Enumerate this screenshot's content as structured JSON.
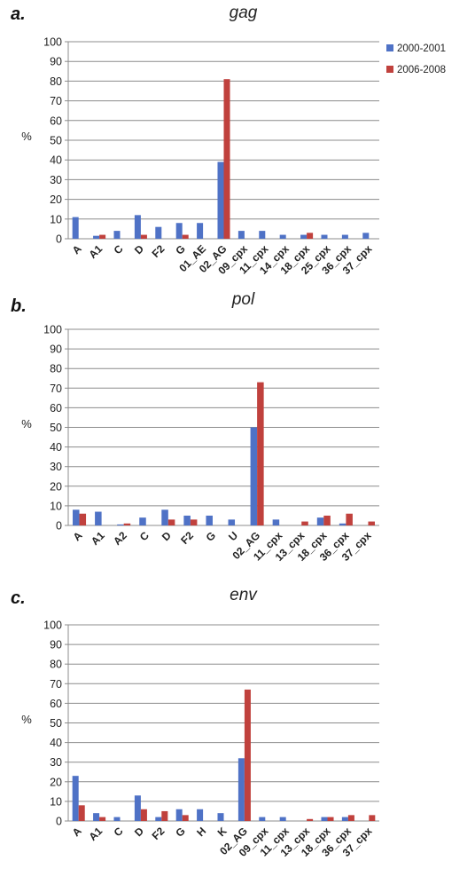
{
  "legend": {
    "entries": [
      {
        "label": "2000-2001",
        "color": "#4f72c6"
      },
      {
        "label": "2006-2008",
        "color": "#c0413d"
      }
    ]
  },
  "chart_data": [
    {
      "type": "bar",
      "panel_label": "a.",
      "title": "gag",
      "ylabel": "%",
      "ylim": [
        0,
        100
      ],
      "yticks": [
        0,
        10,
        20,
        30,
        40,
        50,
        60,
        70,
        80,
        90,
        100
      ],
      "grid": true,
      "legend_placement": "top-right",
      "categories": [
        "A",
        "A1",
        "C",
        "D",
        "F2",
        "G",
        "01_AE",
        "02_AG",
        "09_cpx",
        "11_cpx",
        "14_cpx",
        "18_cpx",
        "25_cpx",
        "36_cpx",
        "37_cpx"
      ],
      "series": [
        {
          "name": "2000-2001",
          "values": [
            11,
            1.5,
            4,
            12,
            6,
            8,
            8,
            39,
            4,
            4,
            2,
            2,
            2,
            2,
            3
          ]
        },
        {
          "name": "2006-2008",
          "values": [
            0,
            2,
            0,
            2,
            0,
            2,
            0,
            81,
            0,
            0,
            0,
            3,
            0,
            0,
            0
          ]
        }
      ]
    },
    {
      "type": "bar",
      "panel_label": "b.",
      "title": "pol",
      "ylabel": "%",
      "ylim": [
        0,
        100
      ],
      "yticks": [
        0,
        10,
        20,
        30,
        40,
        50,
        60,
        70,
        80,
        90,
        100
      ],
      "grid": true,
      "categories": [
        "A",
        "A1",
        "A2",
        "C",
        "D",
        "F2",
        "G",
        "U",
        "02_AG",
        "11_cpx",
        "13_cpx",
        "18_cpx",
        "36_cpx",
        "37_cpx"
      ],
      "series": [
        {
          "name": "2000-2001",
          "values": [
            8,
            7,
            0.5,
            4,
            8,
            5,
            5,
            3,
            50,
            3,
            0,
            4,
            1,
            0
          ]
        },
        {
          "name": "2006-2008",
          "values": [
            6,
            0,
            1,
            0,
            3,
            3,
            0,
            0,
            73,
            0,
            2,
            5,
            6,
            2
          ]
        }
      ]
    },
    {
      "type": "bar",
      "panel_label": "c.",
      "title": "env",
      "ylabel": "%",
      "ylim": [
        0,
        100
      ],
      "yticks": [
        0,
        10,
        20,
        30,
        40,
        50,
        60,
        70,
        80,
        90,
        100
      ],
      "grid": true,
      "categories": [
        "A",
        "A1",
        "C",
        "D",
        "F2",
        "G",
        "H",
        "K",
        "02_AG",
        "09_cpx",
        "11_cpx",
        "13_cpx",
        "18_cpx",
        "36_cpx",
        "37_cpx"
      ],
      "series": [
        {
          "name": "2000-2001",
          "values": [
            23,
            4,
            2,
            13,
            2,
            6,
            6,
            4,
            32,
            2,
            2,
            0,
            2,
            2,
            0
          ]
        },
        {
          "name": "2006-2008",
          "values": [
            8,
            2,
            0,
            6,
            5,
            3,
            0,
            0,
            67,
            0,
            0,
            1,
            2,
            3,
            3
          ]
        }
      ]
    }
  ]
}
